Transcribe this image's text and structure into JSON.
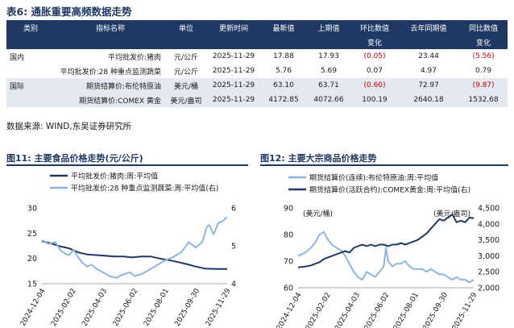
{
  "table": {
    "title": "表6:  通胀重要高频数据走势",
    "headers": {
      "category": "类别",
      "indicator": "指标名称",
      "unit": "单位",
      "update_time": "更新时间",
      "latest": "最新值",
      "previous": "上期值",
      "mom_line1": "环比数值",
      "mom_line2": "变化",
      "yoy_prev": "去年同期值",
      "yoy_line1": "同比数值",
      "yoy_line2": "变化"
    },
    "rows": [
      {
        "category": "国内",
        "indicator": "平均批发价:猪肉",
        "unit": "元/公斤",
        "update_time": "2025-11-29",
        "latest": "17.88",
        "previous": "17.93",
        "mom": "(0.05)",
        "yoy_prev": "23.44",
        "yoy": "(5.56)"
      },
      {
        "category": "",
        "indicator": "平均批发价:28 种重点监测蔬菜",
        "unit": "元/公斤",
        "update_time": "2025-11-29",
        "latest": "5.76",
        "previous": "5.69",
        "mom": "0.07",
        "yoy_prev": "4.97",
        "yoy": "0.79"
      },
      {
        "category": "国际",
        "indicator": "期货结算价:布伦特原油",
        "unit": "美元/桶",
        "update_time": "2025-11-29",
        "latest": "63.10",
        "previous": "63.71",
        "mom": "(0.60)",
        "yoy_prev": "72.97",
        "yoy": "(9.87)"
      },
      {
        "category": "",
        "indicator": "期货结算价:COMEX 黄金",
        "unit": "美元/盎司",
        "update_time": "2025-11-29",
        "latest": "4172.85",
        "previous": "4072.66",
        "mom": "100.19",
        "yoy_prev": "2640.18",
        "yoy": "1532.68"
      }
    ],
    "source": "数据来源:  WIND,东吴证券研究所"
  },
  "chart_data": [
    {
      "type": "line",
      "title": "图11:  主要食品价格走势(元/公斤)",
      "x": [
        "2024-12-04",
        "2025-02-02",
        "2025-04-03",
        "2025-06-02",
        "2025-08-01",
        "2025-09-30",
        "2025-11-29"
      ],
      "ylim_left": [
        15,
        30
      ],
      "ylim_right": [
        4,
        6
      ],
      "left_ticks": [
        "30",
        "25",
        "20",
        "15"
      ],
      "right_ticks": [
        "6",
        "5",
        "4"
      ],
      "series": [
        {
          "name": "平均批发价:猪肉:周:平均值",
          "axis": "left",
          "color": "#1f3864",
          "points": [
            [
              0,
              23.4
            ],
            [
              4,
              23.0
            ],
            [
              8,
              22.4
            ],
            [
              12,
              22.0
            ],
            [
              16,
              21.2
            ],
            [
              20,
              20.8
            ],
            [
              26,
              20.6
            ],
            [
              32,
              20.4
            ],
            [
              36,
              20.4
            ],
            [
              40,
              20.2
            ],
            [
              44,
              20.4
            ],
            [
              48,
              20.4
            ],
            [
              52,
              20.0
            ],
            [
              58,
              19.5
            ],
            [
              64,
              18.9
            ],
            [
              68,
              18.4
            ],
            [
              72,
              18.0
            ],
            [
              77,
              17.9
            ],
            [
              82,
              17.9
            ]
          ]
        },
        {
          "name": "平均批发价:28 种重点监测蔬菜:周:平均值(右)",
          "axis": "right",
          "color": "#8eb4e3",
          "points": [
            [
              0,
              5.15
            ],
            [
              3,
              5.05
            ],
            [
              6,
              5.1
            ],
            [
              8,
              4.9
            ],
            [
              10,
              4.8
            ],
            [
              12,
              4.75
            ],
            [
              14,
              4.9
            ],
            [
              16,
              4.7
            ],
            [
              18,
              4.55
            ],
            [
              20,
              4.45
            ],
            [
              22,
              4.5
            ],
            [
              24,
              4.4
            ],
            [
              27,
              4.3
            ],
            [
              30,
              4.2
            ],
            [
              33,
              4.15
            ],
            [
              36,
              4.25
            ],
            [
              39,
              4.3
            ],
            [
              41,
              4.2
            ],
            [
              44,
              4.25
            ],
            [
              47,
              4.35
            ],
            [
              50,
              4.45
            ],
            [
              54,
              4.6
            ],
            [
              58,
              4.7
            ],
            [
              62,
              4.85
            ],
            [
              65,
              5.1
            ],
            [
              68,
              4.95
            ],
            [
              71,
              5.1
            ],
            [
              73,
              5.5
            ],
            [
              74,
              5.55
            ],
            [
              76,
              5.3
            ],
            [
              78,
              5.6
            ],
            [
              80,
              5.65
            ],
            [
              82,
              5.76
            ]
          ]
        }
      ]
    },
    {
      "type": "line",
      "title": "图12:  主要大宗商品价格走势",
      "x": [
        "2024-12-04",
        "2025-02-02",
        "2025-04-03",
        "2025-06-02",
        "2025-08-01",
        "2025-09-30",
        "2025-11-29"
      ],
      "ylim_left": [
        60,
        90
      ],
      "ylim_right": [
        2000,
        4500
      ],
      "left_ticks": [
        "90",
        "80",
        "70",
        "60"
      ],
      "right_ticks": [
        "4,500",
        "4,000",
        "3,500",
        "3,000",
        "2,500",
        "2,000"
      ],
      "left_unit": "(美元/桶)",
      "right_unit": "(美元/盎司)",
      "series": [
        {
          "name": "期货结算价(连续):布伦特原油:周:平均值",
          "axis": "left",
          "color": "#8eb4e3",
          "points": [
            [
              0,
              72
            ],
            [
              3,
              73
            ],
            [
              6,
              75
            ],
            [
              8,
              77
            ],
            [
              10,
              80
            ],
            [
              12,
              81
            ],
            [
              14,
              78
            ],
            [
              16,
              76
            ],
            [
              18,
              75
            ],
            [
              20,
              74
            ],
            [
              22,
              72
            ],
            [
              24,
              69
            ],
            [
              26,
              66
            ],
            [
              28,
              64
            ],
            [
              30,
              63
            ],
            [
              32,
              66
            ],
            [
              34,
              65
            ],
            [
              36,
              64
            ],
            [
              38,
              66
            ],
            [
              40,
              68
            ],
            [
              41,
              75
            ],
            [
              42,
              70
            ],
            [
              44,
              68
            ],
            [
              46,
              69
            ],
            [
              48,
              69
            ],
            [
              50,
              70
            ],
            [
              52,
              68
            ],
            [
              54,
              67
            ],
            [
              56,
              67
            ],
            [
              58,
              67
            ],
            [
              60,
              66
            ],
            [
              62,
              67
            ],
            [
              64,
              66
            ],
            [
              66,
              65
            ],
            [
              68,
              65
            ],
            [
              70,
              64
            ],
            [
              72,
              63
            ],
            [
              74,
              64
            ],
            [
              76,
              63
            ],
            [
              78,
              63
            ],
            [
              80,
              62
            ],
            [
              82,
              63
            ]
          ]
        },
        {
          "name": "期货结算价(活跃合约):COMEX黄金:周:平均值(右)",
          "axis": "right",
          "color": "#1f3864",
          "points": [
            [
              0,
              2640
            ],
            [
              3,
              2660
            ],
            [
              6,
              2700
            ],
            [
              8,
              2750
            ],
            [
              10,
              2800
            ],
            [
              12,
              2900
            ],
            [
              14,
              2950
            ],
            [
              16,
              3000
            ],
            [
              18,
              3050
            ],
            [
              20,
              3100
            ],
            [
              22,
              3150
            ],
            [
              24,
              3100
            ],
            [
              26,
              3250
            ],
            [
              28,
              3300
            ],
            [
              30,
              3350
            ],
            [
              32,
              3300
            ],
            [
              34,
              3350
            ],
            [
              36,
              3300
            ],
            [
              38,
              3350
            ],
            [
              40,
              3350
            ],
            [
              42,
              3300
            ],
            [
              44,
              3350
            ],
            [
              46,
              3350
            ],
            [
              48,
              3400
            ],
            [
              50,
              3350
            ],
            [
              52,
              3400
            ],
            [
              54,
              3450
            ],
            [
              56,
              3500
            ],
            [
              58,
              3600
            ],
            [
              60,
              3700
            ],
            [
              62,
              3850
            ],
            [
              64,
              4000
            ],
            [
              66,
              4150
            ],
            [
              68,
              4100
            ],
            [
              70,
              4200
            ],
            [
              72,
              4300
            ],
            [
              74,
              4050
            ],
            [
              76,
              4100
            ],
            [
              78,
              4050
            ],
            [
              80,
              4200
            ],
            [
              82,
              4173
            ]
          ]
        }
      ]
    }
  ]
}
